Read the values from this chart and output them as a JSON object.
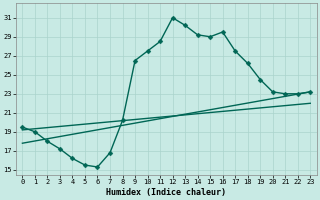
{
  "xlabel": "Humidex (Indice chaleur)",
  "ylabel": "",
  "bg_color": "#c8eae4",
  "grid_color": "#aad4cc",
  "line_color": "#006655",
  "xlim": [
    -0.5,
    23.5
  ],
  "ylim": [
    14.5,
    32.5
  ],
  "xticks": [
    0,
    1,
    2,
    3,
    4,
    5,
    6,
    7,
    8,
    9,
    10,
    11,
    12,
    13,
    14,
    15,
    16,
    17,
    18,
    19,
    20,
    21,
    22,
    23
  ],
  "yticks": [
    15,
    17,
    19,
    21,
    23,
    25,
    27,
    29,
    31
  ],
  "line1_x": [
    0,
    1,
    2,
    3,
    4,
    5,
    6,
    7,
    8,
    9,
    10,
    11,
    12,
    13,
    14,
    15,
    16,
    17,
    18,
    19,
    20,
    21,
    22,
    23
  ],
  "line1_y": [
    19.5,
    19.0,
    18.0,
    17.2,
    16.2,
    15.5,
    15.3,
    16.8,
    20.2,
    26.5,
    27.5,
    28.5,
    31.0,
    30.2,
    29.2,
    29.0,
    29.5,
    27.5,
    26.2,
    24.5,
    23.2,
    23.0,
    23.0,
    23.2
  ],
  "line2_x": [
    0,
    23
  ],
  "line2_y": [
    17.8,
    23.2
  ],
  "line3_x": [
    0,
    23
  ],
  "line3_y": [
    19.2,
    22.0
  ],
  "marker": "D",
  "markersize": 2.5,
  "linewidth": 1.0,
  "tick_fontsize": 5.0,
  "xlabel_fontsize": 6.0
}
